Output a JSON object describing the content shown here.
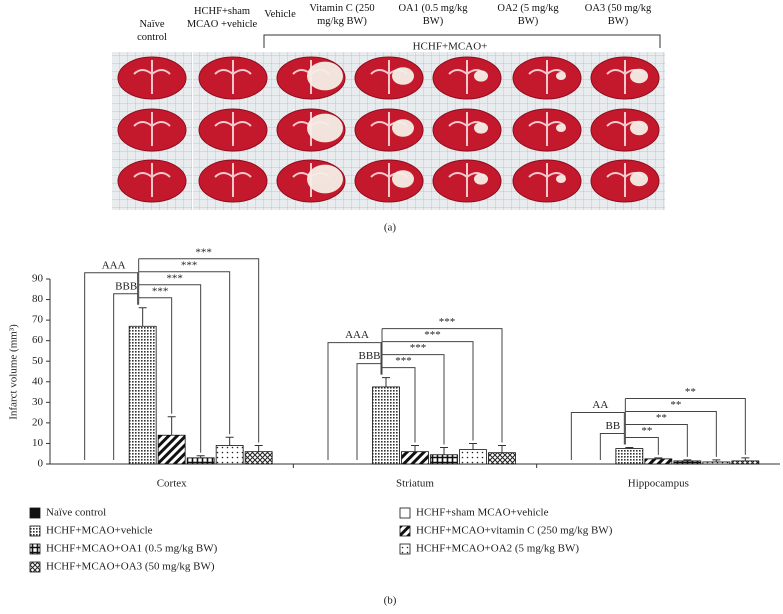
{
  "panel_a": {
    "group_labels": [
      "Naïve control",
      "HCHF+sham MCAO +vehicle",
      "Vehicle",
      "Vitamin C (250 mg/kg BW)",
      "OA1 (0.5 mg/kg BW)",
      "OA2 (5 mg/kg BW)",
      "OA3 (50 mg/kg BW)"
    ],
    "bracket_label": "HCHF+MCAO+",
    "caption": "(a)"
  },
  "chart_data": {
    "type": "bar",
    "ylabel": "Infarct volume (mm³)",
    "caption": "(b)",
    "categories": [
      "Cortex",
      "Striatum",
      "Hippocampus"
    ],
    "ylim": [
      0,
      90
    ],
    "yticks": [
      0,
      10,
      20,
      30,
      40,
      50,
      60,
      70,
      80,
      90
    ],
    "series": [
      {
        "name": "Naïve control",
        "color": "#111111",
        "pattern": "solid",
        "values": [
          0,
          0,
          0
        ],
        "errors": [
          0,
          0,
          0
        ]
      },
      {
        "name": "HCHF+sham MCAO+vehicle",
        "color": "#111111",
        "pattern": "none",
        "values": [
          0,
          0,
          0
        ],
        "errors": [
          0,
          0,
          0
        ]
      },
      {
        "name": "HCHF+MCAO+vehicle",
        "color": "#111111",
        "pattern": "dots",
        "values": [
          67,
          37.5,
          7.5
        ],
        "errors": [
          9,
          4.5,
          0.5
        ]
      },
      {
        "name": "HCHF+MCAO+vitamin C (250 mg/kg BW)",
        "color": "#111111",
        "pattern": "stripes",
        "values": [
          14,
          6,
          2.5
        ],
        "errors": [
          9,
          3,
          0.5
        ]
      },
      {
        "name": "HCHF+MCAO+OA1 (0.5 mg/kg BW)",
        "color": "#111111",
        "pattern": "grid",
        "values": [
          3,
          4.5,
          1.5
        ],
        "errors": [
          1,
          3.5,
          0.5
        ]
      },
      {
        "name": "HCHF+MCAO+OA2 (5 mg/kg BW)",
        "color": "#111111",
        "pattern": "sparse-dots",
        "values": [
          9,
          7,
          1
        ],
        "errors": [
          4,
          3,
          1
        ]
      },
      {
        "name": "HCHF+MCAO+OA3 (50 mg/kg BW)",
        "color": "#111111",
        "pattern": "crosshatch",
        "values": [
          6,
          5.5,
          1.5
        ],
        "errors": [
          3,
          3.5,
          1.5
        ]
      }
    ],
    "significance": [
      {
        "vs_naive": "AAA",
        "vs_sham": "BBB",
        "vs_vehicle": [
          "***",
          "***",
          "***",
          "***"
        ]
      },
      {
        "vs_naive": "AAA",
        "vs_sham": "BBB",
        "vs_vehicle": [
          "***",
          "***",
          "***",
          "***"
        ]
      },
      {
        "vs_naive": "AA",
        "vs_sham": "BB",
        "vs_vehicle": [
          "**",
          "**",
          "**",
          "**"
        ]
      }
    ]
  }
}
